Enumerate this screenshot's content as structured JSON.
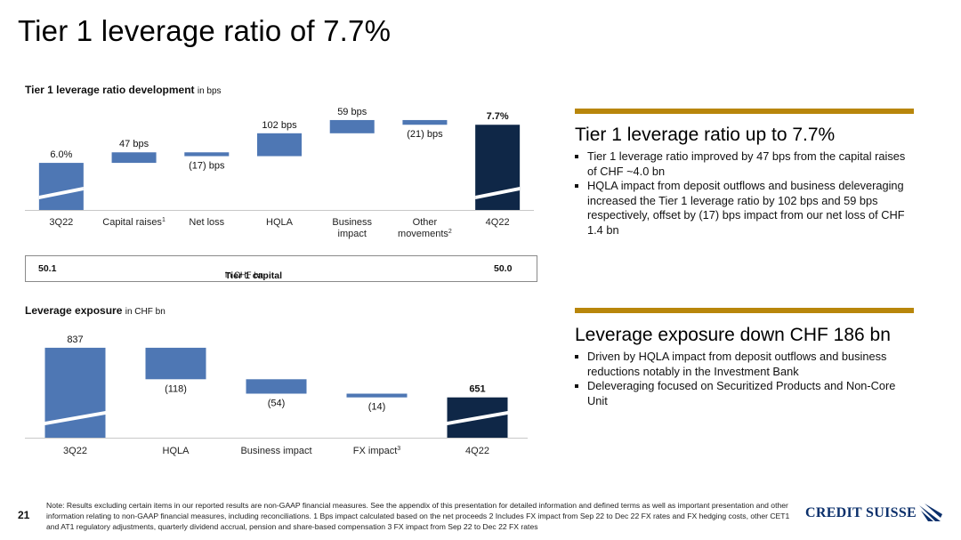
{
  "page": {
    "title": "Tier 1 leverage ratio of 7.7%",
    "page_number": "21"
  },
  "colors": {
    "bar_blue": "#4e77b4",
    "bar_navy": "#0f2747",
    "gold": "#b8860b",
    "logo_blue": "#0a2f6b"
  },
  "chart_data": [
    {
      "type": "bar",
      "subtype": "waterfall",
      "title": "Tier 1 leverage ratio development",
      "unit": "in bps",
      "categories": [
        "3Q22",
        "Capital raises",
        "Net loss",
        "HQLA",
        "Business impact",
        "Other movements",
        "4Q22"
      ],
      "category_superscripts": [
        "",
        "1",
        "",
        "",
        "",
        "2",
        ""
      ],
      "values": [
        6.0,
        0.47,
        -0.17,
        1.02,
        0.59,
        -0.21,
        7.7
      ],
      "value_labels": [
        "6.0%",
        "47 bps",
        "(17) bps",
        "102 bps",
        "59 bps",
        "(21) bps",
        "7.7%"
      ],
      "bar_kinds": [
        "total",
        "delta",
        "delta",
        "delta",
        "delta",
        "delta",
        "total"
      ],
      "axis_break": true
    },
    {
      "type": "bar",
      "subtype": "waterfall",
      "title": "Leverage exposure",
      "unit": "in CHF bn",
      "categories": [
        "3Q22",
        "HQLA",
        "Business impact",
        "FX impact",
        "4Q22"
      ],
      "category_superscripts": [
        "",
        "",
        "",
        "3",
        ""
      ],
      "values": [
        837,
        -118,
        -54,
        -14,
        651
      ],
      "value_labels": [
        "837",
        "(118)",
        "(54)",
        "(14)",
        "651"
      ],
      "bar_kinds": [
        "total",
        "delta",
        "delta",
        "delta",
        "total"
      ],
      "axis_break": true
    }
  ],
  "tier1_capital": {
    "left_value": "50.1",
    "label": "Tier 1 capital",
    "unit": "in CHF bn",
    "right_value": "50.0"
  },
  "panels": [
    {
      "title": "Tier 1 leverage ratio up to 7.7%",
      "bullets": [
        "Tier 1 leverage ratio improved by 47 bps from the capital raises of CHF ~4.0 bn",
        "HQLA impact from deposit outflows and business deleveraging increased the Tier 1 leverage ratio by 102 bps and 59 bps respectively, offset by (17) bps impact from our net loss of CHF 1.4 bn"
      ]
    },
    {
      "title": "Leverage exposure down CHF 186 bn",
      "bullets": [
        "Driven by HQLA impact from deposit outflows and business reductions notably in the Investment Bank",
        "Deleveraging focused on Securitized Products and Non-Core Unit"
      ]
    }
  ],
  "footnote": "Note: Results excluding certain items in our reported results are non-GAAP financial measures. See the appendix of this presentation for detailed information and defined terms as well as important presentation and other information relating to non-GAAP financial measures, including reconciliations.    1 Bps impact calculated based on the net proceeds    2 Includes FX impact from Sep 22 to Dec 22 FX rates and FX hedging costs, other CET1 and AT1 regulatory adjustments, quarterly dividend accrual, pension and share-based compensation    3 FX impact from Sep 22 to Dec 22 FX rates",
  "logo": {
    "text": "CREDIT SUISSE",
    "icon": "sail-icon"
  }
}
